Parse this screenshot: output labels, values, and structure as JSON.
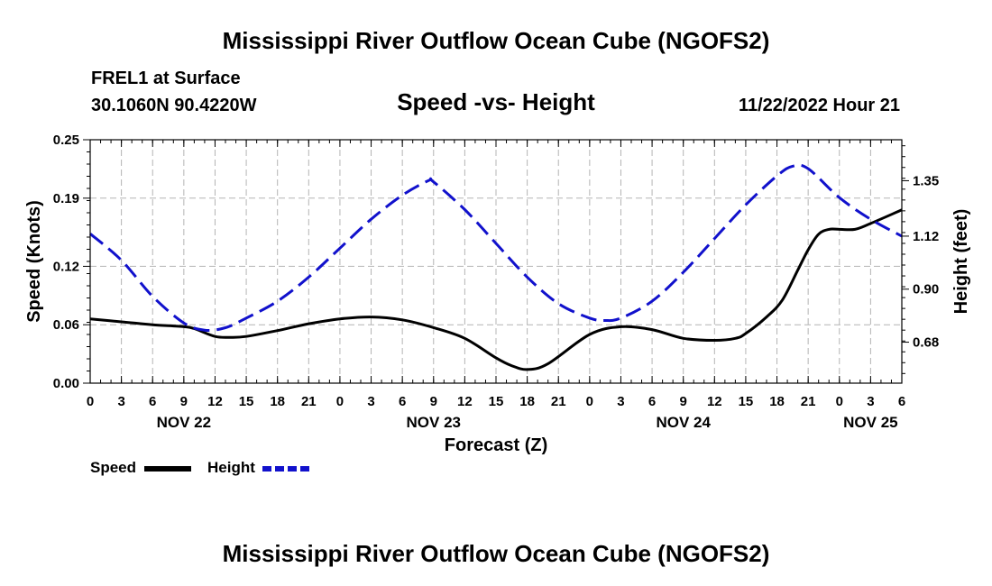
{
  "header": {
    "title": "Mississippi River Outflow Ocean Cube (NGOFS2)",
    "station": "FREL1 at Surface",
    "coords": "30.1060N  90.4220W",
    "subtitle": "Speed -vs- Height",
    "datetime": "11/22/2022 Hour 21"
  },
  "footer": {
    "title": "Mississippi River Outflow Ocean Cube (NGOFS2)"
  },
  "legend": {
    "speed_label": "Speed",
    "height_label": "Height"
  },
  "chart_data": {
    "type": "line",
    "title": "Speed -vs- Height",
    "xlabel": "Forecast (Z)",
    "ylabel": "Speed (Knots)",
    "y2label": "Height (feet)",
    "x_range_hours": [
      0,
      78
    ],
    "x_ticks": [
      {
        "hour": 0,
        "label": "0"
      },
      {
        "hour": 3,
        "label": "3"
      },
      {
        "hour": 6,
        "label": "6"
      },
      {
        "hour": 9,
        "label": "9"
      },
      {
        "hour": 12,
        "label": "12"
      },
      {
        "hour": 15,
        "label": "15"
      },
      {
        "hour": 18,
        "label": "18"
      },
      {
        "hour": 21,
        "label": "21"
      },
      {
        "hour": 24,
        "label": "0"
      },
      {
        "hour": 27,
        "label": "3"
      },
      {
        "hour": 30,
        "label": "6"
      },
      {
        "hour": 33,
        "label": "9"
      },
      {
        "hour": 36,
        "label": "12"
      },
      {
        "hour": 39,
        "label": "15"
      },
      {
        "hour": 42,
        "label": "18"
      },
      {
        "hour": 45,
        "label": "21"
      },
      {
        "hour": 48,
        "label": "0"
      },
      {
        "hour": 51,
        "label": "3"
      },
      {
        "hour": 54,
        "label": "6"
      },
      {
        "hour": 57,
        "label": "9"
      },
      {
        "hour": 60,
        "label": "12"
      },
      {
        "hour": 63,
        "label": "15"
      },
      {
        "hour": 66,
        "label": "18"
      },
      {
        "hour": 69,
        "label": "21"
      },
      {
        "hour": 72,
        "label": "0"
      },
      {
        "hour": 75,
        "label": "3"
      },
      {
        "hour": 78,
        "label": "6"
      }
    ],
    "date_labels": [
      {
        "hour": 9,
        "label": "NOV 22"
      },
      {
        "hour": 33,
        "label": "NOV 23"
      },
      {
        "hour": 57,
        "label": "NOV 24"
      },
      {
        "hour": 75,
        "label": "NOV 25"
      }
    ],
    "y_left": {
      "min": 0,
      "max": 0.25,
      "ticks": [
        "0.00",
        "0.06",
        "0.12",
        "0.19",
        "0.25"
      ]
    },
    "y_right": {
      "min": 0.51,
      "max": 1.52,
      "ticks": [
        "0.68",
        "0.90",
        "1.12",
        "1.35"
      ]
    },
    "series": [
      {
        "name": "Speed",
        "axis": "left",
        "color": "#000000",
        "style": "solid",
        "x": [
          0,
          3,
          6,
          9,
          10,
          12,
          13.5,
          15,
          18,
          21,
          24,
          27,
          30,
          33,
          36,
          39,
          40.5,
          42,
          44,
          48,
          51,
          54,
          57,
          60,
          62,
          63,
          65,
          66.5,
          68,
          69,
          70,
          71,
          72,
          73.5,
          75,
          78
        ],
        "y": [
          0.066,
          0.063,
          0.06,
          0.058,
          0.056,
          0.048,
          0.047,
          0.048,
          0.054,
          0.061,
          0.066,
          0.068,
          0.065,
          0.057,
          0.046,
          0.026,
          0.018,
          0.014,
          0.02,
          0.05,
          0.058,
          0.055,
          0.046,
          0.044,
          0.046,
          0.051,
          0.068,
          0.085,
          0.116,
          0.137,
          0.153,
          0.158,
          0.158,
          0.158,
          0.164,
          0.178
        ]
      },
      {
        "name": "Height",
        "axis": "right",
        "color": "#1111cc",
        "style": "dashed",
        "x": [
          0,
          3,
          6,
          9,
          11,
          13,
          15,
          18,
          21,
          24,
          27,
          30,
          32.5,
          33,
          36,
          39,
          42,
          45,
          48,
          49.5,
          51,
          54,
          57,
          60,
          63,
          66,
          67.5,
          69,
          72,
          75,
          78
        ],
        "y": [
          1.13,
          1.02,
          0.87,
          0.76,
          0.73,
          0.74,
          0.78,
          0.85,
          0.95,
          1.07,
          1.19,
          1.29,
          1.35,
          1.345,
          1.23,
          1.09,
          0.95,
          0.84,
          0.78,
          0.77,
          0.78,
          0.85,
          0.97,
          1.11,
          1.25,
          1.37,
          1.41,
          1.4,
          1.28,
          1.19,
          1.12
        ]
      }
    ]
  }
}
